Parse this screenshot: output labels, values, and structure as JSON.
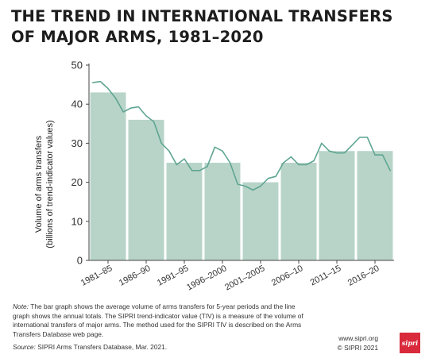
{
  "header": {
    "title_line1": "THE TREND IN INTERNATIONAL TRANSFERS",
    "title_line2": "OF MAJOR ARMS, 1981–2020"
  },
  "chart_data": {
    "type": "bar",
    "categories": [
      "1981–85",
      "1986–90",
      "1991–95",
      "1996–2000",
      "2001–2005",
      "2006–10",
      "2011–15",
      "2016–20"
    ],
    "series": [
      {
        "type": "bar",
        "values": [
          43,
          36,
          25,
          25,
          20,
          25,
          28,
          28
        ]
      },
      {
        "type": "line",
        "x": [
          1981,
          1982,
          1983,
          1984,
          1985,
          1986,
          1987,
          1988,
          1989,
          1990,
          1991,
          1992,
          1993,
          1994,
          1995,
          1996,
          1997,
          1998,
          1999,
          2000,
          2001,
          2002,
          2003,
          2004,
          2005,
          2006,
          2007,
          2008,
          2009,
          2010,
          2011,
          2012,
          2013,
          2014,
          2015,
          2016,
          2017,
          2018,
          2019,
          2020
        ],
        "values": [
          45.5,
          45.8,
          44,
          41.5,
          38,
          39,
          39.3,
          37,
          35.5,
          30,
          28,
          24.5,
          26,
          23,
          23,
          24,
          29,
          28,
          25,
          19.5,
          19,
          18,
          19,
          21,
          21.5,
          25,
          26.5,
          24.5,
          24.5,
          25.5,
          30,
          28,
          27.5,
          27.5,
          29.5,
          31.5,
          31.5,
          27,
          27,
          23
        ]
      }
    ],
    "ylabel_line1": "Volume of arms transfers",
    "ylabel_line2": "(billions of trend-indicator values)",
    "ylim": [
      0,
      50
    ],
    "yticks": [
      0,
      10,
      20,
      30,
      40,
      50
    ],
    "grid": false,
    "colors": {
      "bar": "#b8d4c9",
      "line": "#5fa592",
      "axis": "#444444"
    }
  },
  "footer": {
    "note_label": "Note:",
    "note_text": "The bar graph shows the average volume of arms transfers for 5-year periods and the line graph shows the annual totals. The SIPRI trend-indicator value (TIV) is a measure of the volume of international transfers of major arms. The method used for the SIPRI TIV is described on the Arms Transfers Database web page.",
    "source_label": "Source:",
    "source_text": "SIPRI Arms Transfers Database, Mar. 2021.",
    "credit_url": "www.sipri.org",
    "credit_copy": "© SIPRI 2021",
    "logo_text": "sipri"
  }
}
